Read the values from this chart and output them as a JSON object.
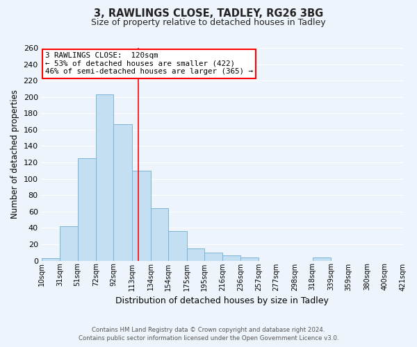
{
  "title": "3, RAWLINGS CLOSE, TADLEY, RG26 3BG",
  "subtitle": "Size of property relative to detached houses in Tadley",
  "xlabel": "Distribution of detached houses by size in Tadley",
  "ylabel": "Number of detached properties",
  "bar_color": "#c5dff2",
  "bar_edge_color": "#7ab4d8",
  "bar_left_edges": [
    10,
    31,
    51,
    72,
    92,
    113,
    134,
    154,
    175,
    195,
    216,
    236,
    257,
    277,
    298,
    318,
    339,
    359,
    380,
    400
  ],
  "bar_widths": [
    21,
    20,
    21,
    20,
    21,
    21,
    20,
    21,
    20,
    21,
    20,
    21,
    20,
    21,
    20,
    21,
    20,
    21,
    20,
    21
  ],
  "bar_heights": [
    3,
    42,
    125,
    203,
    167,
    110,
    64,
    36,
    15,
    10,
    6,
    4,
    0,
    0,
    0,
    4,
    0,
    0,
    0,
    0
  ],
  "xtick_labels": [
    "10sqm",
    "31sqm",
    "51sqm",
    "72sqm",
    "92sqm",
    "113sqm",
    "134sqm",
    "154sqm",
    "175sqm",
    "195sqm",
    "216sqm",
    "236sqm",
    "257sqm",
    "277sqm",
    "298sqm",
    "318sqm",
    "339sqm",
    "359sqm",
    "380sqm",
    "400sqm",
    "421sqm"
  ],
  "ylim": [
    0,
    260
  ],
  "yticks": [
    0,
    20,
    40,
    60,
    80,
    100,
    120,
    140,
    160,
    180,
    200,
    220,
    240,
    260
  ],
  "red_line_x": 120,
  "annotation_text_line1": "3 RAWLINGS CLOSE:  120sqm",
  "annotation_text_line2": "← 53% of detached houses are smaller (422)",
  "annotation_text_line3": "46% of semi-detached houses are larger (365) →",
  "footer_line1": "Contains HM Land Registry data © Crown copyright and database right 2024.",
  "footer_line2": "Contains public sector information licensed under the Open Government Licence v3.0.",
  "background_color": "#eef4fb",
  "grid_color": "#ffffff"
}
